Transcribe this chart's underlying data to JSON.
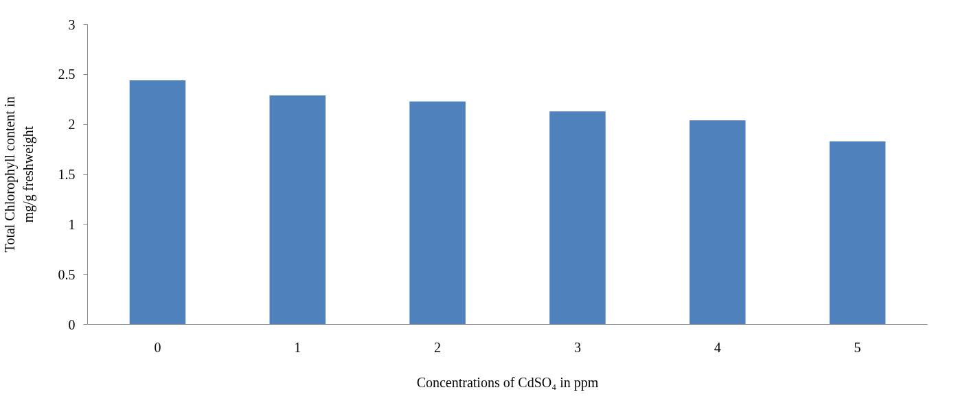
{
  "chart_data": {
    "type": "bar",
    "xlabel": "Concentrations of CdSO₄ in ppm",
    "ylabel": "Total Chlorophyll content in\nmg/g freshweight",
    "categories": [
      "0",
      "1",
      "2",
      "3",
      "4",
      "5"
    ],
    "values": [
      2.44,
      2.29,
      2.23,
      2.13,
      2.04,
      1.83
    ],
    "color": "#4f81bd",
    "ylim": [
      0,
      3
    ],
    "yticks": [
      0,
      0.5,
      1,
      1.5,
      2,
      2.5,
      3
    ],
    "grid": false
  }
}
